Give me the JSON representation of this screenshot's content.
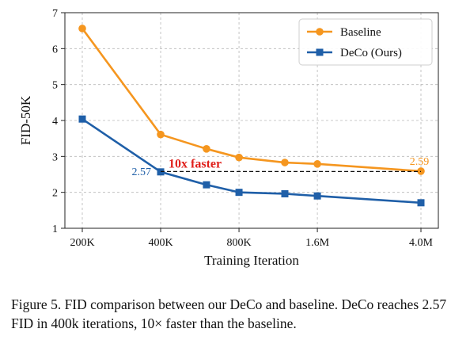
{
  "chart_data": {
    "type": "line",
    "x_categories": [
      "200K",
      "400K",
      "800K",
      "1.6M",
      "4.0M"
    ],
    "xlabel": "Training Iteration",
    "ylabel": "FID-50K",
    "ylim": [
      1,
      7
    ],
    "yticks": [
      1,
      2,
      3,
      4,
      5,
      6,
      7
    ],
    "grid": true,
    "legend_position": "top-right",
    "x_scale": "log",
    "series": [
      {
        "name": "Baseline",
        "color": "#f5961f",
        "marker": "circle",
        "x": [
          200000,
          400000,
          600000,
          800000,
          1200000,
          1600000,
          4000000
        ],
        "y": [
          6.56,
          3.61,
          3.21,
          2.97,
          2.83,
          2.79,
          2.59
        ]
      },
      {
        "name": "DeCo (Ours)",
        "color": "#1f5fa8",
        "marker": "square",
        "x": [
          200000,
          400000,
          600000,
          800000,
          1200000,
          1600000,
          4000000
        ],
        "y": [
          4.04,
          2.57,
          2.21,
          2.0,
          1.96,
          1.9,
          1.71
        ]
      }
    ],
    "annotations": {
      "deco_value": {
        "text": "2.57",
        "color": "#1f5fa8"
      },
      "baseline_value": {
        "text": "2.59",
        "color": "#f5961f"
      },
      "speedup": {
        "text": "10x faster",
        "color": "#e0201b"
      }
    },
    "reference_line": {
      "from_x": 400000,
      "to_x": 4000000,
      "y": 2.58,
      "style": "dashed"
    }
  },
  "caption": "Figure 5. FID comparison between our DeCo and baseline. DeCo reaches 2.57 FID in 400k iterations, 10× faster than the baseline."
}
